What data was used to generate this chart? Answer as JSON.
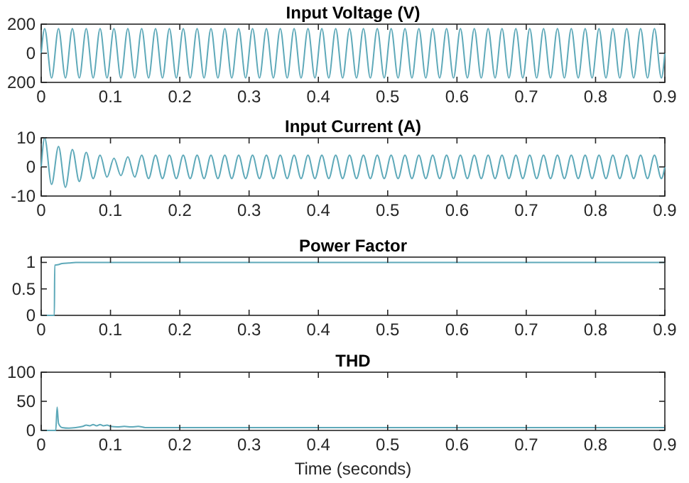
{
  "chart_data": [
    {
      "type": "line",
      "title": "Input Voltage (V)",
      "xlim": [
        0,
        0.9
      ],
      "xticks": [
        0,
        0.1,
        0.2,
        0.3,
        0.4,
        0.5,
        0.6,
        0.7,
        0.8,
        0.9
      ],
      "ylim": [
        -200,
        200
      ],
      "yticks": [
        {
          "value": -200,
          "label": "200"
        },
        0,
        200
      ],
      "x": [
        0,
        0.005,
        0.015,
        0.025,
        0.035,
        0.045,
        0.055,
        0.065,
        0.075,
        0.085,
        0.095,
        0.105,
        0.115,
        0.125,
        0.135,
        0.145,
        0.155,
        0.165,
        0.175,
        0.185,
        0.195,
        0.205,
        0.215,
        0.225,
        0.235,
        0.245,
        0.255,
        0.265,
        0.275,
        0.285,
        0.295,
        0.305,
        0.315,
        0.325,
        0.335,
        0.345,
        0.355,
        0.365,
        0.375,
        0.385,
        0.395,
        0.405,
        0.415,
        0.425,
        0.435,
        0.445,
        0.455,
        0.465,
        0.475,
        0.485,
        0.495,
        0.505,
        0.515,
        0.525,
        0.535,
        0.545,
        0.555,
        0.565,
        0.575,
        0.585,
        0.595,
        0.605,
        0.615,
        0.625,
        0.635,
        0.645,
        0.655,
        0.665,
        0.675,
        0.685,
        0.695,
        0.705,
        0.715,
        0.725,
        0.735,
        0.745,
        0.755,
        0.765,
        0.775,
        0.785,
        0.795,
        0.805,
        0.815,
        0.825,
        0.835,
        0.845,
        0.855,
        0.865,
        0.875,
        0.885,
        0.895,
        0.9
      ],
      "series": [
        {
          "color": "#5ea9b9",
          "values": [
            0,
            170,
            -170,
            170,
            -170,
            170,
            -170,
            170,
            -170,
            170,
            -170,
            170,
            -170,
            170,
            -170,
            170,
            -170,
            170,
            -170,
            170,
            -170,
            170,
            -170,
            170,
            -170,
            170,
            -170,
            170,
            -170,
            170,
            -170,
            170,
            -170,
            170,
            -170,
            170,
            -170,
            170,
            -170,
            170,
            -170,
            170,
            -170,
            170,
            -170,
            170,
            -170,
            170,
            -170,
            170,
            -170,
            170,
            -170,
            170,
            -170,
            170,
            -170,
            170,
            -170,
            170,
            -170,
            170,
            -170,
            170,
            -170,
            170,
            -170,
            170,
            -170,
            170,
            -170,
            170,
            -170,
            170,
            -170,
            170,
            -170,
            170,
            -170,
            170,
            -170,
            170,
            -170,
            170,
            -170,
            170,
            -170,
            170,
            -170,
            170,
            -170,
            0
          ]
        }
      ]
    },
    {
      "type": "line",
      "title": "Input Current (A)",
      "xlim": [
        0,
        0.9
      ],
      "xticks": [
        0,
        0.1,
        0.2,
        0.3,
        0.4,
        0.5,
        0.6,
        0.7,
        0.8,
        0.9
      ],
      "ylim": [
        -10,
        10
      ],
      "yticks": [
        -10,
        0,
        10
      ],
      "x": [
        0,
        0.005,
        0.015,
        0.025,
        0.035,
        0.045,
        0.055,
        0.065,
        0.075,
        0.085,
        0.095,
        0.105,
        0.115,
        0.125,
        0.135,
        0.145,
        0.155,
        0.165,
        0.175,
        0.185,
        0.195,
        0.205,
        0.215,
        0.225,
        0.235,
        0.245,
        0.255,
        0.265,
        0.275,
        0.285,
        0.295,
        0.305,
        0.315,
        0.325,
        0.335,
        0.345,
        0.355,
        0.365,
        0.375,
        0.385,
        0.395,
        0.405,
        0.415,
        0.425,
        0.435,
        0.445,
        0.455,
        0.465,
        0.475,
        0.485,
        0.495,
        0.505,
        0.515,
        0.525,
        0.535,
        0.545,
        0.555,
        0.565,
        0.575,
        0.585,
        0.595,
        0.605,
        0.615,
        0.625,
        0.635,
        0.645,
        0.655,
        0.665,
        0.675,
        0.685,
        0.695,
        0.705,
        0.715,
        0.725,
        0.735,
        0.745,
        0.755,
        0.765,
        0.775,
        0.785,
        0.795,
        0.805,
        0.815,
        0.825,
        0.835,
        0.845,
        0.855,
        0.865,
        0.875,
        0.885,
        0.895,
        0.9
      ],
      "series": [
        {
          "color": "#5ea9b9",
          "values": [
            0,
            10,
            -6,
            7,
            -7,
            6,
            -5,
            5,
            -4,
            4,
            -3.5,
            3,
            -3,
            3.5,
            -3.5,
            4,
            -4,
            4,
            -4,
            4,
            -4,
            4,
            -4,
            4,
            -4,
            4,
            -4,
            4,
            -4,
            4,
            -4,
            4,
            -4,
            4,
            -4,
            4,
            -4,
            4,
            -4,
            4,
            -4,
            4,
            -4,
            4,
            -4,
            4,
            -4,
            4,
            -4,
            4,
            -4,
            4,
            -4,
            4,
            -4,
            4,
            -4,
            4,
            -4,
            4,
            -4,
            4,
            -4,
            4,
            -4,
            4,
            -4,
            4,
            -4,
            4,
            -4,
            4,
            -4,
            4,
            -4,
            4,
            -4,
            4,
            -4,
            4,
            -4,
            4,
            -4,
            4,
            -4,
            4,
            -4,
            4,
            -4,
            4,
            -4,
            0
          ]
        }
      ]
    },
    {
      "type": "line",
      "title": "Power Factor",
      "xlim": [
        0,
        0.9
      ],
      "xticks": [
        0,
        0.1,
        0.2,
        0.3,
        0.4,
        0.5,
        0.6,
        0.7,
        0.8,
        0.9
      ],
      "ylim": [
        0,
        1.1
      ],
      "yticks": [
        0,
        0.5,
        1
      ],
      "x": [
        0,
        0.019,
        0.0195,
        0.02,
        0.025,
        0.03,
        0.04,
        0.05,
        0.9
      ],
      "series": [
        {
          "color": "#5ea9b9",
          "values": [
            0,
            0,
            0.95,
            0.95,
            0.96,
            0.98,
            0.99,
            1,
            1
          ]
        }
      ]
    },
    {
      "type": "line",
      "title": "THD",
      "xlabel": "Time (seconds)",
      "xlim": [
        0,
        0.9
      ],
      "xticks": [
        0,
        0.1,
        0.2,
        0.3,
        0.4,
        0.5,
        0.6,
        0.7,
        0.8,
        0.9
      ],
      "ylim": [
        0,
        100
      ],
      "yticks": [
        0,
        50,
        100
      ],
      "x": [
        0,
        0.021,
        0.023,
        0.025,
        0.03,
        0.04,
        0.05,
        0.06,
        0.065,
        0.07,
        0.075,
        0.08,
        0.085,
        0.09,
        0.095,
        0.1,
        0.11,
        0.12,
        0.13,
        0.14,
        0.15,
        0.2,
        0.9
      ],
      "series": [
        {
          "color": "#5ea9b9",
          "values": [
            0,
            0,
            40,
            12,
            5,
            4,
            5,
            7,
            9,
            8,
            10,
            8,
            10,
            8,
            9,
            7,
            6,
            7,
            6,
            7,
            5,
            5,
            5
          ]
        }
      ]
    }
  ]
}
